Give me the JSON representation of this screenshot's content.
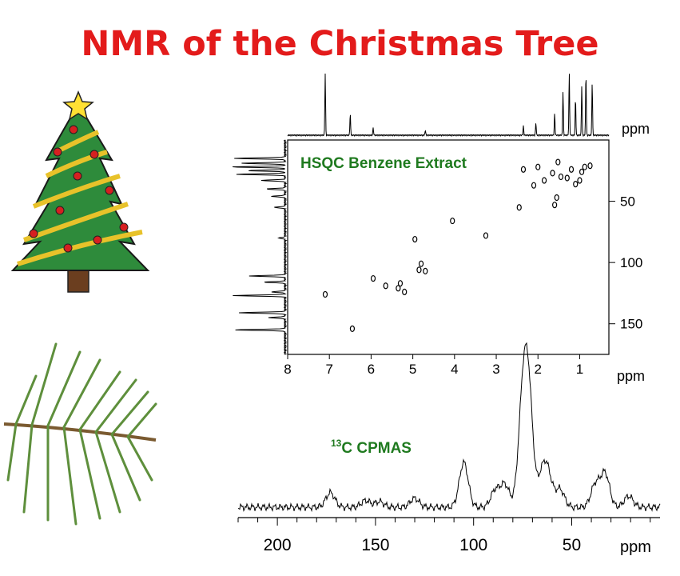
{
  "title": "NMR of the Christmas Tree",
  "colors": {
    "title": "#e31b1b",
    "label_green": "#1f7a1f",
    "tree_green": "#2e8b3b",
    "ornament_red": "#d62020",
    "garland_gold": "#e8c22a",
    "needle_green": "#5e8f3c"
  },
  "icons": {
    "tree": "christmas-tree-icon",
    "branch": "pine-branch-icon"
  },
  "chart_data": [
    {
      "type": "scatter",
      "label": "HSQC Benzene Extract",
      "xlabel": "ppm",
      "ylabel": "ppm",
      "xlim": [
        8,
        0.3
      ],
      "ylim": [
        175,
        0
      ],
      "x_ticks": [
        "8",
        "7",
        "6",
        "5",
        "4",
        "3",
        "2",
        "1"
      ],
      "x_tick_values": [
        8,
        7,
        6,
        5,
        4,
        3,
        2,
        1
      ],
      "y_ticks": [
        "50",
        "100",
        "150"
      ],
      "y_tick_values": [
        50,
        100,
        150
      ],
      "cross_peaks": [
        {
          "x": 7.1,
          "y": 126
        },
        {
          "x": 6.45,
          "y": 154
        },
        {
          "x": 5.95,
          "y": 113
        },
        {
          "x": 5.65,
          "y": 119
        },
        {
          "x": 5.35,
          "y": 121
        },
        {
          "x": 5.2,
          "y": 124
        },
        {
          "x": 5.3,
          "y": 117
        },
        {
          "x": 4.85,
          "y": 106
        },
        {
          "x": 4.8,
          "y": 101
        },
        {
          "x": 4.7,
          "y": 107
        },
        {
          "x": 4.95,
          "y": 81
        },
        {
          "x": 4.05,
          "y": 66
        },
        {
          "x": 3.25,
          "y": 78
        },
        {
          "x": 2.45,
          "y": 55
        },
        {
          "x": 2.35,
          "y": 24
        },
        {
          "x": 2.1,
          "y": 37
        },
        {
          "x": 1.85,
          "y": 33
        },
        {
          "x": 1.65,
          "y": 27
        },
        {
          "x": 1.52,
          "y": 18
        },
        {
          "x": 1.45,
          "y": 30
        },
        {
          "x": 1.3,
          "y": 31
        },
        {
          "x": 1.2,
          "y": 24
        },
        {
          "x": 1.1,
          "y": 36
        },
        {
          "x": 0.95,
          "y": 26
        },
        {
          "x": 0.88,
          "y": 22
        },
        {
          "x": 0.75,
          "y": 21
        },
        {
          "x": 1.55,
          "y": 47
        },
        {
          "x": 1.6,
          "y": 53
        },
        {
          "x": 2.0,
          "y": 22
        },
        {
          "x": 1.0,
          "y": 33
        }
      ],
      "top_projection_peaks": [
        {
          "x": 7.1,
          "h": 1.0
        },
        {
          "x": 6.5,
          "h": 0.35
        },
        {
          "x": 5.95,
          "h": 0.12
        },
        {
          "x": 4.7,
          "h": 0.08
        },
        {
          "x": 2.35,
          "h": 0.15
        },
        {
          "x": 2.05,
          "h": 0.2
        },
        {
          "x": 1.6,
          "h": 0.35
        },
        {
          "x": 1.4,
          "h": 0.7
        },
        {
          "x": 1.25,
          "h": 1.0
        },
        {
          "x": 1.1,
          "h": 0.6
        },
        {
          "x": 0.95,
          "h": 0.8
        },
        {
          "x": 0.85,
          "h": 1.0
        },
        {
          "x": 0.7,
          "h": 0.85
        }
      ],
      "side_projection_peaks": [
        {
          "y": 15,
          "h": 0.95
        },
        {
          "y": 19,
          "h": 0.8
        },
        {
          "y": 22,
          "h": 1.0
        },
        {
          "y": 25,
          "h": 0.7
        },
        {
          "y": 28,
          "h": 0.9
        },
        {
          "y": 33,
          "h": 0.45
        },
        {
          "y": 40,
          "h": 0.35
        },
        {
          "y": 46,
          "h": 0.25
        },
        {
          "y": 55,
          "h": 0.2
        },
        {
          "y": 80,
          "h": 0.12
        },
        {
          "y": 111,
          "h": 0.65
        },
        {
          "y": 116,
          "h": 0.4
        },
        {
          "y": 124,
          "h": 0.25
        },
        {
          "y": 127,
          "h": 0.95
        },
        {
          "y": 141,
          "h": 0.85
        },
        {
          "y": 145,
          "h": 0.3
        },
        {
          "y": 155,
          "h": 0.95
        }
      ]
    },
    {
      "type": "line",
      "label_sup": "13",
      "label_main": "C CPMAS",
      "xlabel": "ppm",
      "xlim": [
        220,
        5
      ],
      "x_ticks": [
        "200",
        "150",
        "100",
        "50"
      ],
      "x_tick_values": [
        200,
        150,
        100,
        50
      ],
      "peaks": [
        {
          "x": 173,
          "h": 0.13
        },
        {
          "x": 155,
          "h": 0.06
        },
        {
          "x": 148,
          "h": 0.05
        },
        {
          "x": 130,
          "h": 0.08
        },
        {
          "x": 105,
          "h": 0.4
        },
        {
          "x": 89,
          "h": 0.15
        },
        {
          "x": 84,
          "h": 0.2
        },
        {
          "x": 75,
          "h": 0.85
        },
        {
          "x": 72,
          "h": 0.95
        },
        {
          "x": 65,
          "h": 0.27
        },
        {
          "x": 62,
          "h": 0.25
        },
        {
          "x": 56,
          "h": 0.16
        },
        {
          "x": 38,
          "h": 0.2
        },
        {
          "x": 33,
          "h": 0.3
        },
        {
          "x": 21,
          "h": 0.1
        }
      ]
    }
  ]
}
